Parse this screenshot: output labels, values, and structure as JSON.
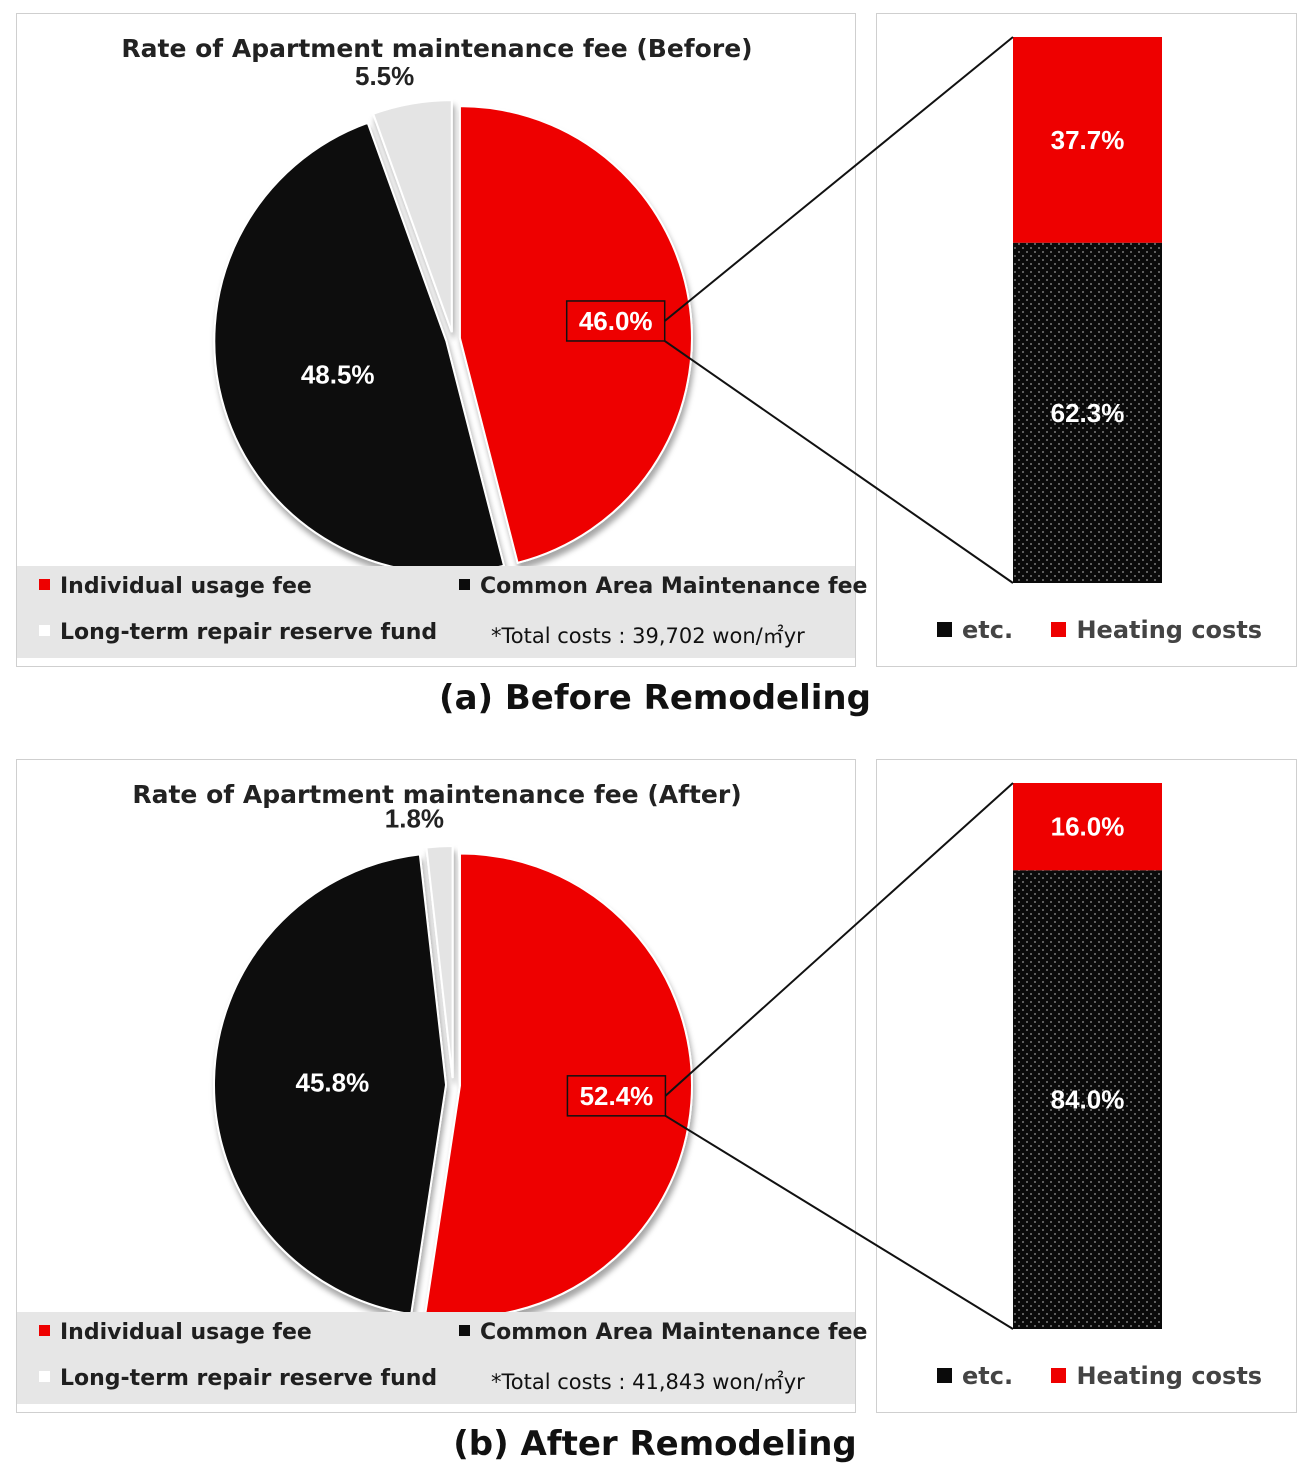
{
  "colors": {
    "individual": "#ee0000",
    "common": "#0c0c0c",
    "reserve": "#e4e4e4",
    "heating": "#ee0000",
    "etc": "#0a0a0a"
  },
  "legend": {
    "individual": "Individual usage fee",
    "common": "Common Area Maintenance fee",
    "reserve": "Long-term repair reserve fund",
    "etc": "etc.",
    "heating": "Heating costs"
  },
  "panels": [
    {
      "caption": "(a) Before Remodeling",
      "total_note": "*Total costs : 39,702 won/㎡yr"
    },
    {
      "caption": "(b) After Remodeling",
      "total_note": "*Total costs : 41,843 won/㎡yr"
    }
  ],
  "chart_data": [
    {
      "type": "pie",
      "title": "Rate of Apartment maintenance fee (Before)",
      "slices": [
        {
          "name": "Individual usage fee",
          "value": 46.0,
          "label": "46.0%",
          "color_key": "individual"
        },
        {
          "name": "Common Area Maintenance fee",
          "value": 48.5,
          "label": "48.5%",
          "color_key": "common"
        },
        {
          "name": "Long-term repair reserve fund",
          "value": 5.5,
          "label": "5.5%",
          "color_key": "reserve"
        }
      ],
      "legend": "bottom"
    },
    {
      "type": "bar",
      "stacked": true,
      "series": [
        {
          "name": "etc.",
          "values": [
            62.3
          ],
          "label": "62.3%"
        },
        {
          "name": "Heating costs",
          "values": [
            37.7
          ],
          "label": "37.7%"
        }
      ],
      "legend": "bottom"
    },
    {
      "type": "pie",
      "title": "Rate of Apartment maintenance fee (After)",
      "slices": [
        {
          "name": "Individual usage fee",
          "value": 52.4,
          "label": "52.4%",
          "color_key": "individual"
        },
        {
          "name": "Common Area Maintenance fee",
          "value": 45.8,
          "label": "45.8%",
          "color_key": "common"
        },
        {
          "name": "Long-term repair reserve fund",
          "value": 1.8,
          "label": "1.8%",
          "color_key": "reserve"
        }
      ],
      "legend": "bottom"
    },
    {
      "type": "bar",
      "stacked": true,
      "series": [
        {
          "name": "etc.",
          "values": [
            84.0
          ],
          "label": "84.0%"
        },
        {
          "name": "Heating costs",
          "values": [
            16.0
          ],
          "label": "16.0%"
        }
      ],
      "legend": "bottom"
    }
  ]
}
